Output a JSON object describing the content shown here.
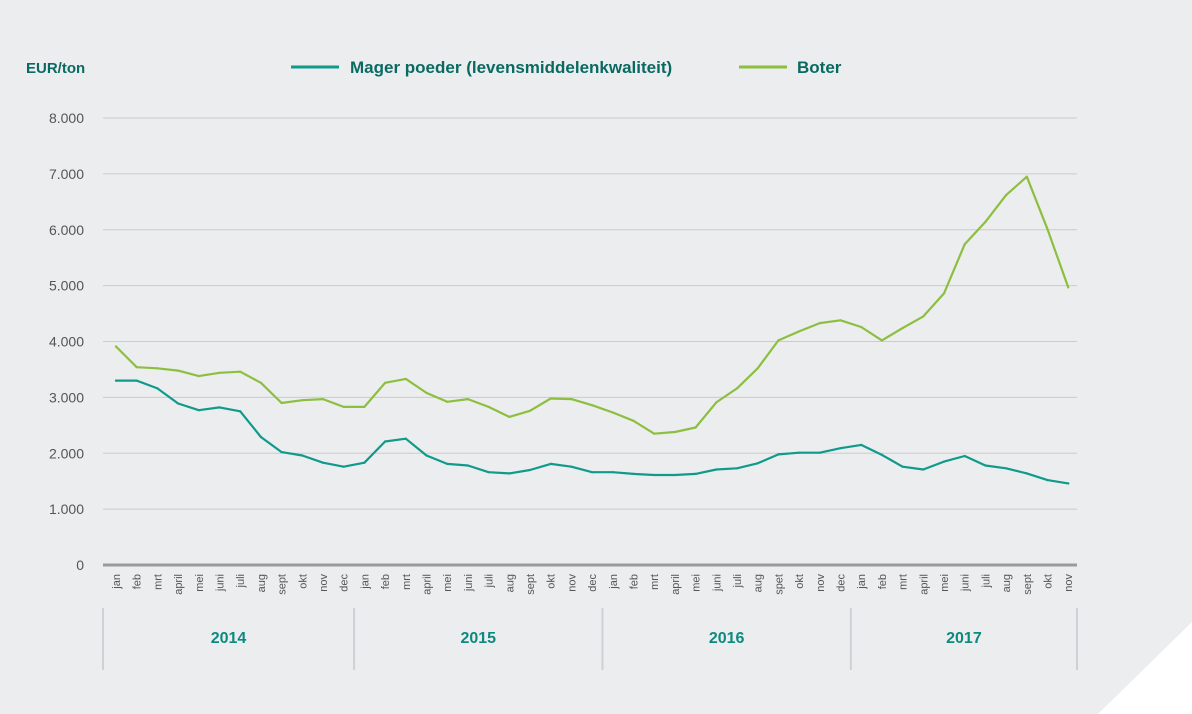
{
  "chart_data": {
    "type": "line",
    "ylabel": "EUR/ton",
    "ylim": [
      0,
      8000
    ],
    "yticks": [
      0,
      1000,
      2000,
      3000,
      4000,
      5000,
      6000,
      7000,
      8000
    ],
    "ytick_labels": [
      "0",
      "1.000",
      "2.000",
      "3.000",
      "4.000",
      "5.000",
      "6.000",
      "7.000",
      "8.000"
    ],
    "grid": true,
    "legend_position": "top",
    "years": [
      "2014",
      "2015",
      "2016",
      "2017"
    ],
    "month_labels": [
      "jan",
      "feb",
      "mrt",
      "april",
      "mei",
      "juni",
      "juli",
      "aug",
      "sept",
      "okt",
      "nov",
      "dec",
      "jan",
      "feb",
      "mrt",
      "april",
      "mei",
      "juni",
      "juli",
      "aug",
      "sept",
      "okt",
      "nov",
      "dec",
      "jan",
      "feb",
      "mrt",
      "april",
      "mei",
      "juni",
      "juli",
      "aug",
      "spet",
      "okt",
      "nov",
      "dec",
      "jan",
      "feb",
      "mrt",
      "april",
      "mei",
      "juni",
      "juli",
      "aug",
      "sept",
      "okt",
      "nov"
    ],
    "series": [
      {
        "name": "Mager poeder (levensmiddelenkwaliteit)",
        "color": "#0f9a8c",
        "values": [
          3300,
          3300,
          3160,
          2890,
          2770,
          2820,
          2750,
          2290,
          2020,
          1960,
          1830,
          1760,
          1830,
          2210,
          2260,
          1960,
          1810,
          1780,
          1660,
          1640,
          1700,
          1810,
          1760,
          1660,
          1660,
          1630,
          1610,
          1610,
          1630,
          1710,
          1730,
          1820,
          1980,
          2010,
          2010,
          2090,
          2150,
          1970,
          1760,
          1710,
          1850,
          1950,
          1780,
          1730,
          1640,
          1520,
          1460
        ]
      },
      {
        "name": "Boter",
        "color": "#8cbf3f",
        "values": [
          3910,
          3540,
          3520,
          3480,
          3380,
          3440,
          3460,
          3260,
          2900,
          2950,
          2970,
          2830,
          2830,
          3260,
          3330,
          3080,
          2920,
          2970,
          2830,
          2650,
          2760,
          2980,
          2970,
          2860,
          2730,
          2580,
          2350,
          2380,
          2460,
          2910,
          3160,
          3520,
          4020,
          4180,
          4330,
          4380,
          4260,
          4020,
          4240,
          4450,
          4860,
          5740,
          6140,
          6620,
          6950,
          6010,
          4970
        ]
      }
    ]
  }
}
